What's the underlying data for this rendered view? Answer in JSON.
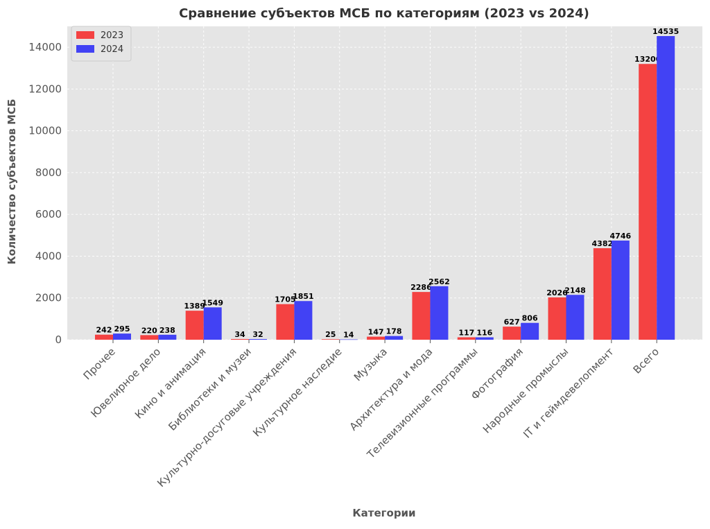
{
  "chart_data": {
    "type": "bar",
    "title": "Сравнение субъектов МСБ по категориям (2023 vs 2024)",
    "xlabel": "Категории",
    "ylabel": "Количество субъектов МСБ",
    "categories": [
      "Прочее",
      "Ювелирное дело",
      "Кино и анимация",
      "Библиотеки и музеи",
      "Культурно-досуговые учреждения",
      "Культурное наследие",
      "Музыка",
      "Архитектура и мода",
      "Телевизионные программы",
      "Фотография",
      "Народные промыслы",
      "IT и геймдевелопмент",
      "Всего"
    ],
    "series": [
      {
        "name": "2023",
        "color": "#f44242",
        "values": [
          242,
          220,
          1389,
          34,
          1705,
          25,
          147,
          2286,
          117,
          627,
          2026,
          4382,
          13200
        ]
      },
      {
        "name": "2024",
        "color": "#4242f4",
        "values": [
          295,
          238,
          1549,
          32,
          1851,
          14,
          178,
          2562,
          116,
          806,
          2148,
          4746,
          14535
        ]
      }
    ],
    "yticks": [
      "0",
      "2000",
      "4000",
      "6000",
      "8000",
      "10000",
      "12000",
      "14000"
    ],
    "ylim": [
      0,
      15000
    ],
    "grid": true,
    "legend_position": "top-left"
  }
}
